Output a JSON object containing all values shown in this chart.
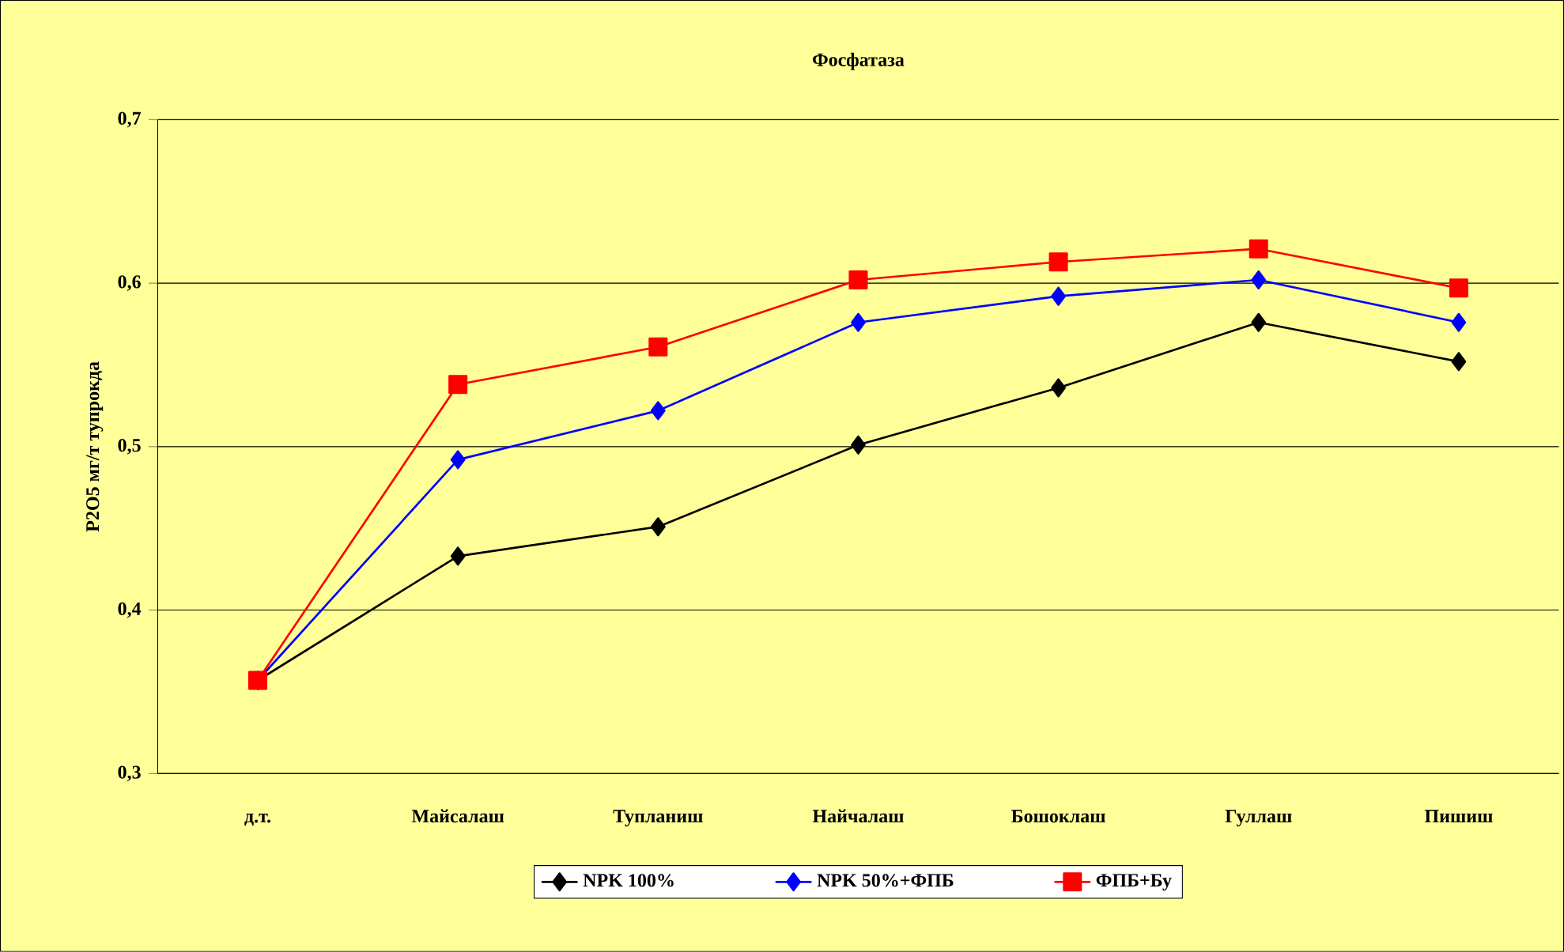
{
  "chart_data": {
    "type": "line",
    "title": "Фосфатаза",
    "ylabel": "Р2О5 мг/т тупрокда",
    "categories": [
      "д.т.",
      "Майсалаш",
      "Тупланиш",
      "Найчалаш",
      "Бошоклаш",
      "Гуллаш",
      "Пишиш"
    ],
    "series": [
      {
        "name": "NPK 100%",
        "color": "#000000",
        "marker": "diamond",
        "values": [
          0.357,
          0.433,
          0.451,
          0.501,
          0.536,
          0.576,
          0.552
        ]
      },
      {
        "name": "NPK 50%+ФПБ",
        "color": "#0000ff",
        "marker": "diamond",
        "values": [
          0.357,
          0.492,
          0.522,
          0.576,
          0.592,
          0.602,
          0.576
        ]
      },
      {
        "name": "ФПБ+Бу",
        "color": "#ff0000",
        "marker": "square",
        "values": [
          0.357,
          0.538,
          0.561,
          0.602,
          0.613,
          0.621,
          0.597
        ]
      }
    ],
    "ylim": [
      0.3,
      0.7
    ],
    "yticks": [
      {
        "value": 0.3,
        "label": "0,3"
      },
      {
        "value": 0.4,
        "label": "0,4"
      },
      {
        "value": 0.5,
        "label": "0,5"
      },
      {
        "value": 0.6,
        "label": "0,6"
      },
      {
        "value": 0.7,
        "label": "0,7"
      }
    ],
    "grid": "y",
    "legend": "bottom",
    "line_style": "solid"
  }
}
